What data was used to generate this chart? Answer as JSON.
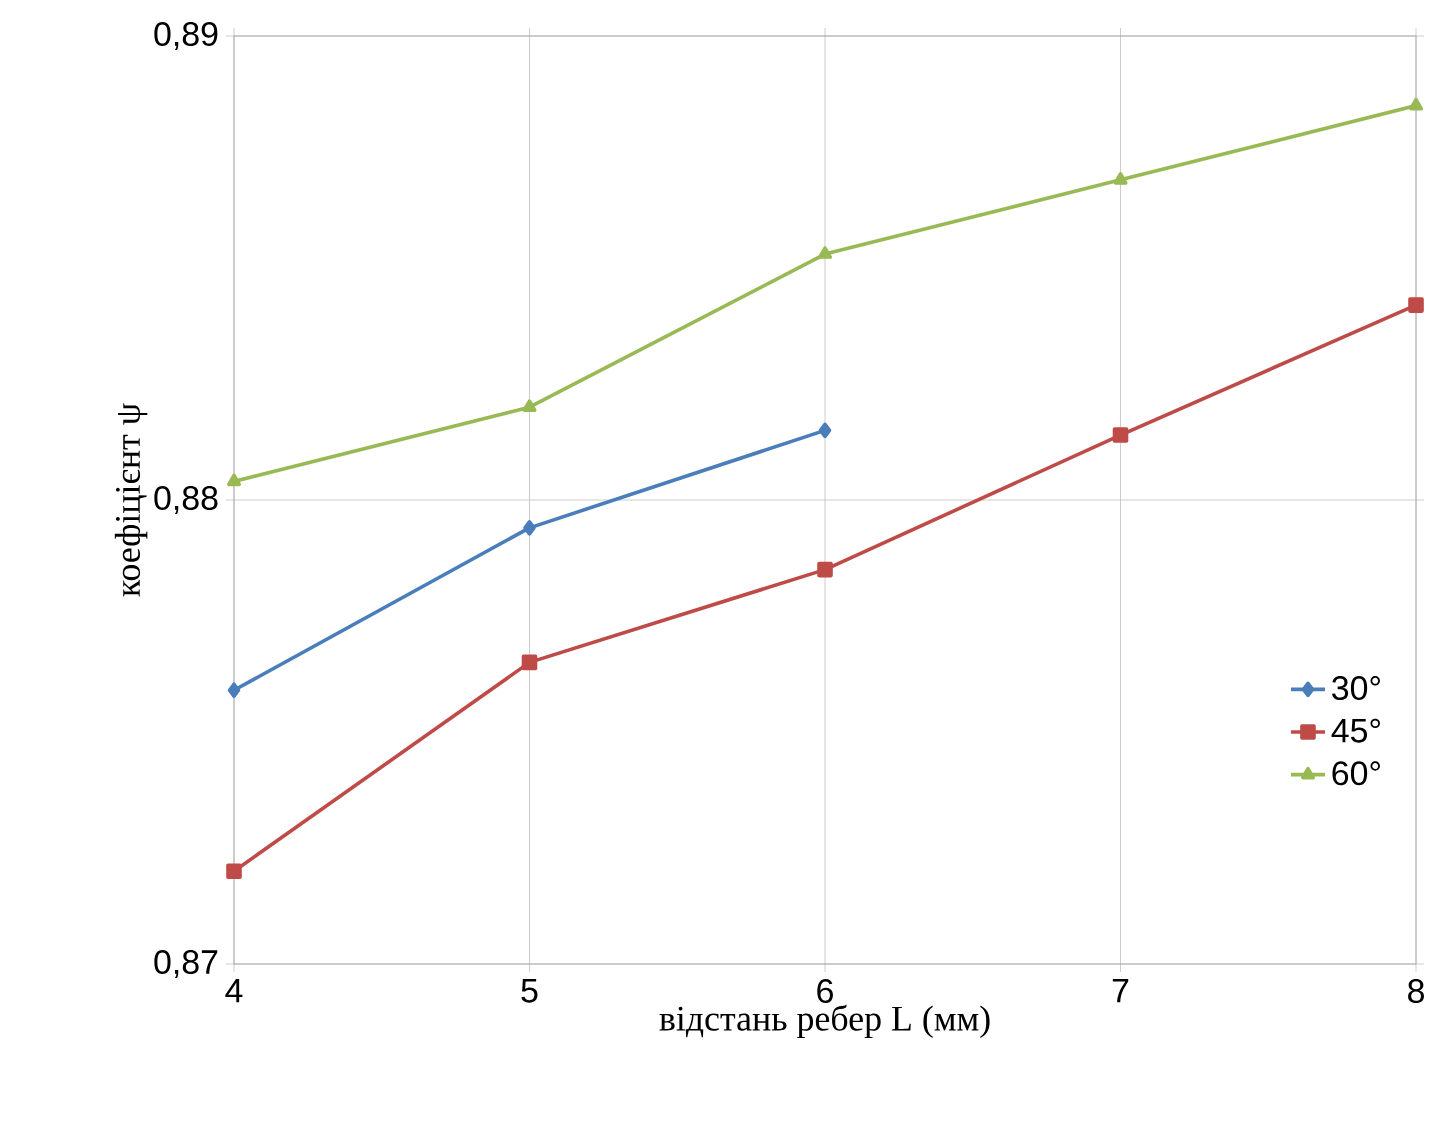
{
  "chart_data": {
    "type": "line",
    "xlabel": "відстань ребер L (мм)",
    "ylabel": "коефіцієнт ψ",
    "x": [
      4,
      5,
      6,
      7,
      8
    ],
    "series": [
      {
        "name": "30°",
        "color": "#4a7ebb",
        "marker": "diamond",
        "values": [
          0.8759,
          0.8794,
          0.8815,
          null,
          null
        ]
      },
      {
        "name": "45°",
        "color": "#be4b48",
        "marker": "square",
        "values": [
          0.872,
          0.8765,
          0.8785,
          0.8814,
          0.8842
        ]
      },
      {
        "name": "60°",
        "color": "#98b954",
        "marker": "triangle",
        "values": [
          0.8804,
          0.882,
          0.8853,
          0.8869,
          0.8885
        ]
      }
    ],
    "xlim": [
      4,
      8
    ],
    "xticks": [
      4,
      5,
      6,
      7,
      8
    ],
    "ylim": [
      0.87,
      0.89
    ],
    "yticks": [
      {
        "value": 0.87,
        "label": "0,87"
      },
      {
        "value": 0.88,
        "label": "0,88"
      },
      {
        "value": 0.89,
        "label": "0,89"
      }
    ],
    "grid": true,
    "legend": "right",
    "line_style": "solid"
  }
}
